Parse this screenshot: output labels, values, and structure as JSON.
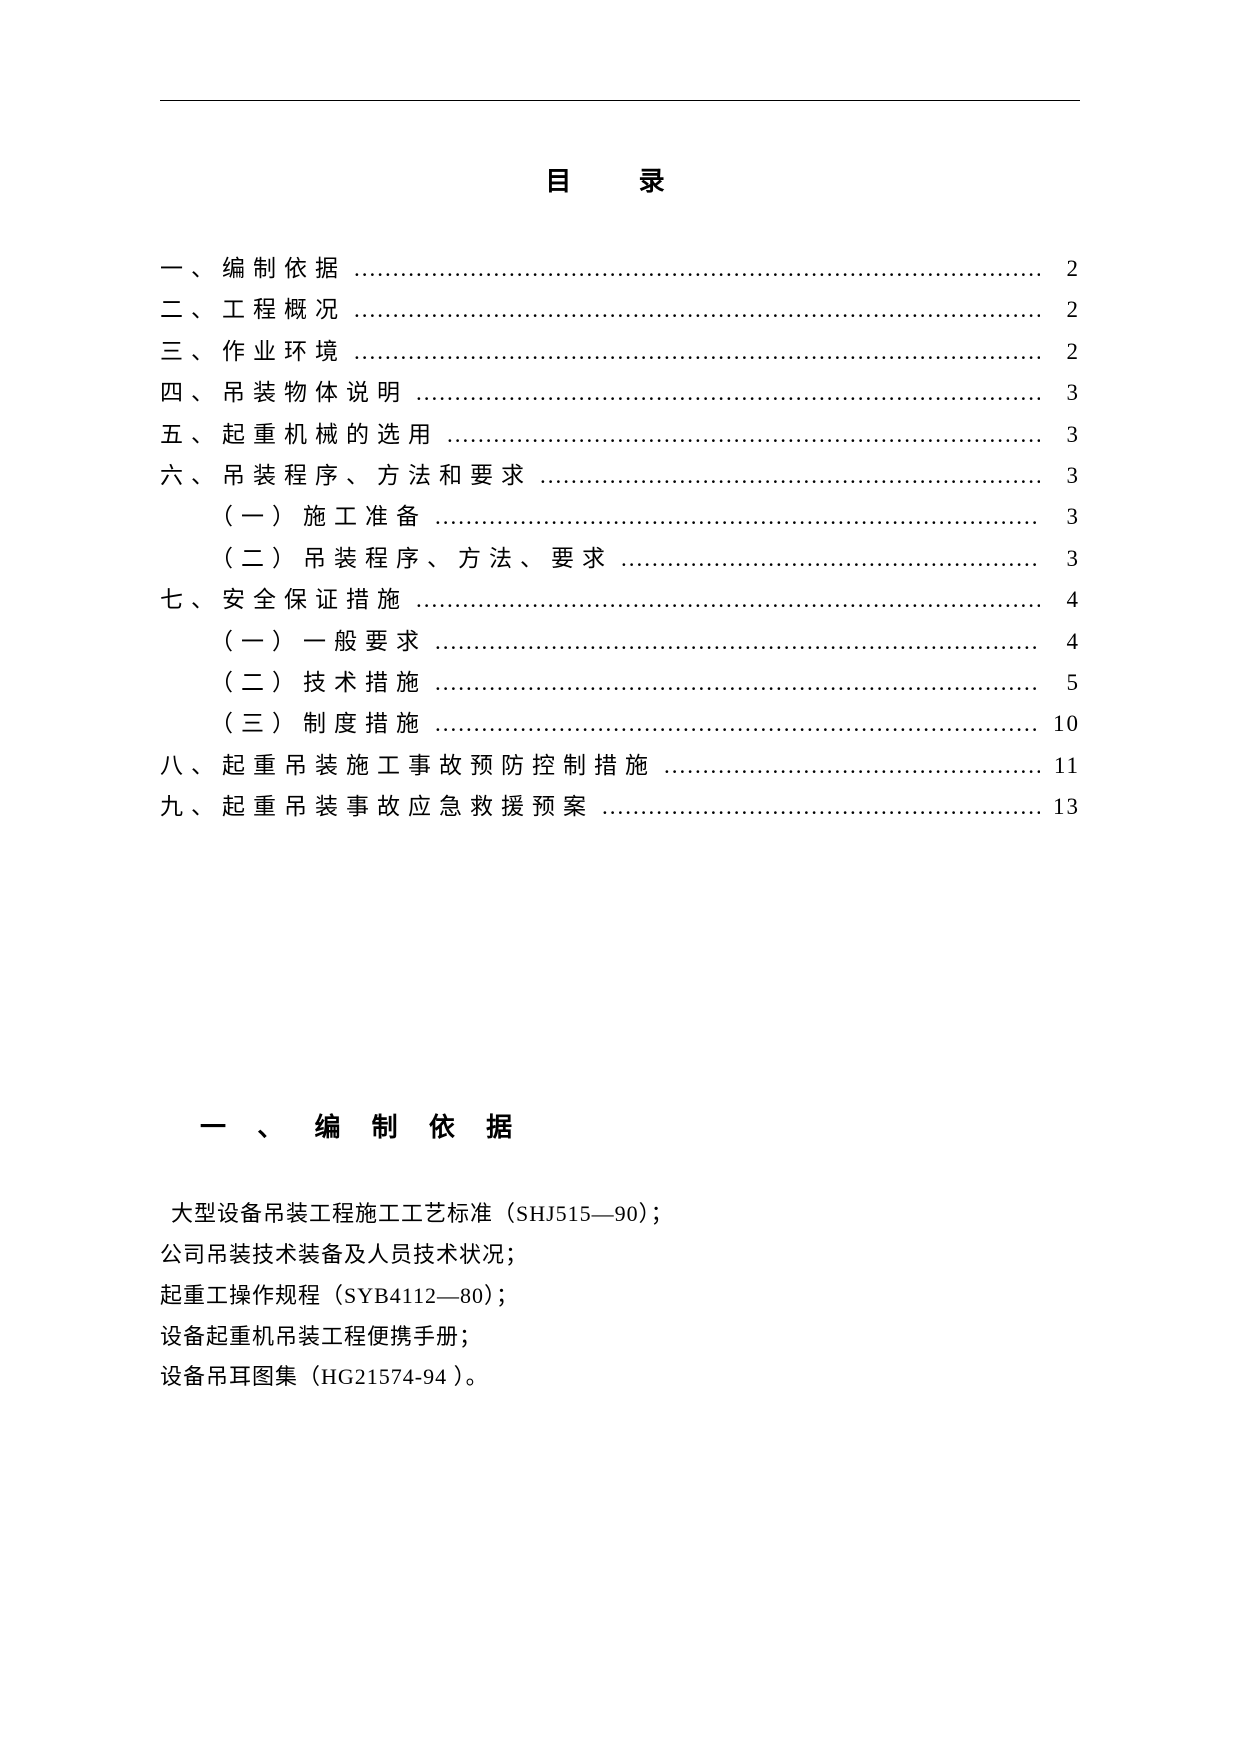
{
  "toc": {
    "title": "目 录",
    "entries": [
      {
        "label": "一、编制依据",
        "page": "2",
        "sub": false
      },
      {
        "label": "二、工程概况",
        "page": "2",
        "sub": false
      },
      {
        "label": "三、作业环境",
        "page": "2",
        "sub": false
      },
      {
        "label": "四、吊装物体说明",
        "page": "3",
        "sub": false
      },
      {
        "label": "五、起重机械的选用",
        "page": "3",
        "sub": false
      },
      {
        "label": "六、吊装程序、方法和要求",
        "page": "3",
        "sub": false
      },
      {
        "label": "（一）施工准备",
        "page": "3",
        "sub": true
      },
      {
        "label": "（二）吊装程序、方法、要求",
        "page": "3",
        "sub": true
      },
      {
        "label": "七、安全保证措施",
        "page": "4",
        "sub": false
      },
      {
        "label": "（一）一般要求",
        "page": "4",
        "sub": true
      },
      {
        "label": "（二）技术措施",
        "page": "5",
        "sub": true
      },
      {
        "label": "（三）制度措施",
        "page": "10",
        "sub": true
      },
      {
        "label": "八、起重吊装施工事故预防控制措施",
        "page": "11",
        "sub": false
      },
      {
        "label": "九、起重吊装事故应急救援预案",
        "page": "13",
        "sub": false
      }
    ]
  },
  "section1": {
    "heading": "一 、 编 制 依 据",
    "lines": [
      " 大型设备吊装工程施工工艺标准（SHJ515—90）；",
      "公司吊装技术装备及人员技术状况；",
      "起重工操作规程（SYB4112—80）；",
      "设备起重机吊装工程便携手册；",
      "设备吊耳图集（HG21574-94 ）。"
    ]
  }
}
